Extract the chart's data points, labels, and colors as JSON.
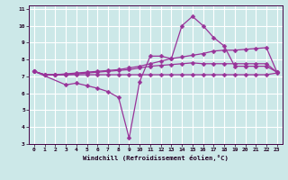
{
  "bg_color": "#cce8e8",
  "grid_color": "#ffffff",
  "line_color": "#993399",
  "xlim": [
    -0.5,
    23.5
  ],
  "ylim": [
    3,
    11.2
  ],
  "xticks": [
    0,
    1,
    2,
    3,
    4,
    5,
    6,
    7,
    8,
    9,
    10,
    11,
    12,
    13,
    14,
    15,
    16,
    17,
    18,
    19,
    20,
    21,
    22,
    23
  ],
  "yticks": [
    3,
    4,
    5,
    6,
    7,
    8,
    9,
    10,
    11
  ],
  "xlabel": "Windchill (Refroidissement éolien,°C)",
  "line1_x": [
    0,
    1,
    2,
    3,
    4,
    5,
    6,
    7,
    8,
    9,
    10,
    11,
    12,
    13,
    14,
    15,
    16,
    17,
    18,
    19,
    20,
    21,
    22,
    23
  ],
  "line1_y": [
    7.3,
    7.1,
    7.1,
    7.1,
    7.1,
    7.1,
    7.1,
    7.1,
    7.1,
    7.1,
    7.1,
    7.1,
    7.1,
    7.1,
    7.1,
    7.1,
    7.1,
    7.1,
    7.1,
    7.1,
    7.1,
    7.1,
    7.1,
    7.2
  ],
  "line2_x": [
    0,
    1,
    2,
    3,
    4,
    5,
    6,
    7,
    8,
    9,
    10,
    11,
    12,
    13,
    14,
    15,
    16,
    17,
    18,
    19,
    20,
    21,
    22,
    23
  ],
  "line2_y": [
    7.3,
    7.1,
    7.1,
    7.1,
    7.15,
    7.2,
    7.25,
    7.3,
    7.35,
    7.4,
    7.5,
    7.6,
    7.65,
    7.7,
    7.75,
    7.8,
    7.75,
    7.75,
    7.75,
    7.75,
    7.75,
    7.75,
    7.75,
    7.25
  ],
  "line3_x": [
    0,
    1,
    2,
    3,
    4,
    5,
    6,
    7,
    8,
    9,
    10,
    11,
    12,
    13,
    14,
    15,
    16,
    17,
    18,
    19,
    20,
    21,
    22,
    23
  ],
  "line3_y": [
    7.3,
    7.1,
    7.1,
    7.15,
    7.2,
    7.25,
    7.3,
    7.35,
    7.4,
    7.5,
    7.6,
    7.75,
    7.9,
    8.05,
    8.15,
    8.25,
    8.35,
    8.5,
    8.55,
    8.55,
    8.6,
    8.65,
    8.7,
    7.25
  ],
  "line4_x": [
    0,
    3,
    4,
    5,
    6,
    7,
    8,
    9,
    10,
    11,
    12,
    13,
    14,
    15,
    16,
    17,
    18,
    19,
    20,
    21,
    22,
    23
  ],
  "line4_y": [
    7.3,
    6.5,
    6.6,
    6.45,
    6.3,
    6.1,
    5.75,
    3.35,
    6.7,
    8.2,
    8.2,
    8.05,
    10.0,
    10.55,
    10.0,
    9.3,
    8.8,
    7.6,
    7.6,
    7.6,
    7.6,
    7.25
  ],
  "markersize": 2.5,
  "linewidth": 0.9
}
